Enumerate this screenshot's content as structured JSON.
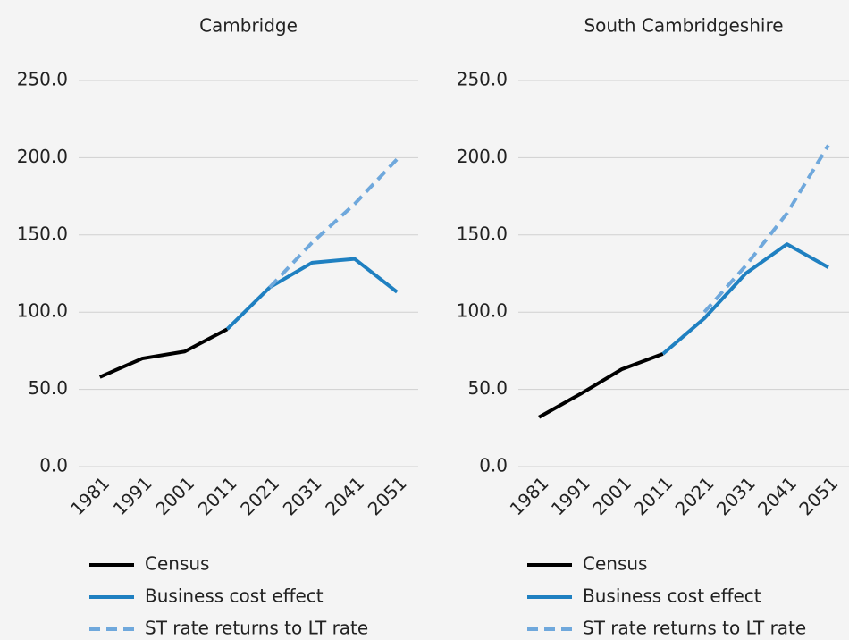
{
  "chart_data": [
    {
      "type": "line",
      "title": "Cambridge",
      "categories": [
        "1981",
        "1991",
        "2001",
        "2011",
        "2021",
        "2031",
        "2041",
        "2051"
      ],
      "series": [
        {
          "name": "Census",
          "color": "#000000",
          "dashed": false,
          "values": [
            58,
            70,
            74.5,
            89,
            null,
            null,
            null,
            null
          ]
        },
        {
          "name": "Business cost effect",
          "color": "#1f80c1",
          "dashed": false,
          "values": [
            null,
            null,
            null,
            89,
            116,
            132,
            134.5,
            113
          ]
        },
        {
          "name": "ST rate returns to LT rate",
          "color": "#6fa8dc",
          "dashed": true,
          "values": [
            null,
            null,
            null,
            null,
            116,
            145,
            170,
            199
          ]
        }
      ],
      "ylim": [
        0,
        250
      ],
      "yticks": [
        {
          "value": 0,
          "label": "0.0"
        },
        {
          "value": 50,
          "label": "50.0"
        },
        {
          "value": 100,
          "label": "100.0"
        },
        {
          "value": 150,
          "label": "150.0"
        },
        {
          "value": 200,
          "label": "200.0"
        },
        {
          "value": 250,
          "label": "250.0"
        }
      ],
      "grid": true,
      "legend": "bottom"
    },
    {
      "type": "line",
      "title": "South Cambridgeshire",
      "categories": [
        "1981",
        "1991",
        "2001",
        "2011",
        "2021",
        "2031",
        "2041",
        "2051"
      ],
      "series": [
        {
          "name": "Census",
          "color": "#000000",
          "dashed": false,
          "values": [
            32,
            47,
            63,
            73,
            null,
            null,
            null,
            null
          ]
        },
        {
          "name": "Business cost effect",
          "color": "#1f80c1",
          "dashed": false,
          "values": [
            null,
            null,
            null,
            73,
            96,
            125,
            144,
            129
          ]
        },
        {
          "name": "ST rate returns to LT rate",
          "color": "#6fa8dc",
          "dashed": true,
          "values": [
            null,
            null,
            null,
            null,
            100,
            130,
            164,
            208
          ]
        }
      ],
      "ylim": [
        0,
        250
      ],
      "yticks": [
        {
          "value": 0,
          "label": "0.0"
        },
        {
          "value": 50,
          "label": "50.0"
        },
        {
          "value": 100,
          "label": "100.0"
        },
        {
          "value": 150,
          "label": "150.0"
        },
        {
          "value": 200,
          "label": "200.0"
        },
        {
          "value": 250,
          "label": "250.0"
        }
      ],
      "grid": true,
      "legend": "bottom"
    }
  ]
}
